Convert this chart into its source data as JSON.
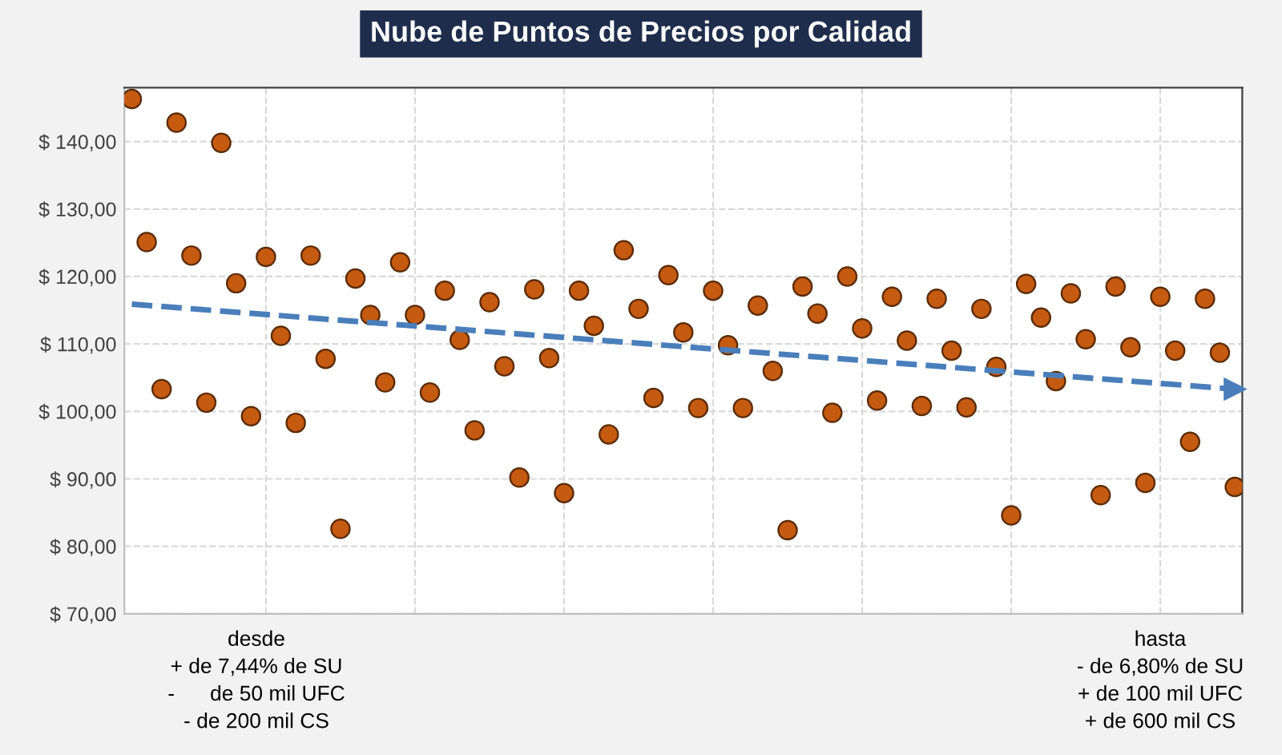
{
  "chart_data": {
    "type": "scatter",
    "title": "Nube de Puntos de Precios por Calidad",
    "categories": [
      null,
      null,
      null,
      null,
      null,
      null,
      null,
      null,
      null,
      null,
      null,
      null,
      null,
      null,
      null,
      null,
      null,
      null,
      null,
      null,
      null,
      null,
      null,
      null,
      null,
      null,
      null,
      null,
      null,
      null,
      null,
      null,
      null,
      null,
      null,
      null,
      null,
      null,
      null,
      null,
      null,
      null,
      null,
      null,
      null,
      null,
      null,
      null,
      null,
      null,
      null,
      null,
      null,
      null,
      null,
      null,
      null,
      null,
      null,
      null,
      null,
      null,
      null,
      null,
      null,
      null,
      null,
      null,
      null,
      null,
      null,
      null,
      null,
      null,
      null
    ],
    "series": [
      {
        "color": "#c55a11",
        "marker": "circle",
        "values": [
          146.3,
          125.1,
          103.3,
          142.8,
          123.1,
          101.3,
          139.8,
          119.0,
          99.3,
          122.9,
          111.2,
          98.3,
          123.1,
          107.8,
          82.6,
          119.7,
          114.3,
          104.3,
          122.1,
          114.3,
          102.8,
          117.9,
          110.6,
          97.2,
          116.2,
          106.7,
          90.2,
          118.1,
          107.9,
          87.9,
          117.9,
          112.7,
          96.6,
          123.9,
          115.2,
          102.0,
          120.2,
          111.7,
          100.5,
          117.9,
          109.8,
          100.5,
          115.7,
          106.0,
          82.4,
          118.5,
          114.5,
          99.8,
          120.0,
          112.3,
          101.6,
          117.0,
          110.5,
          100.8,
          116.7,
          109.0,
          100.6,
          115.2,
          106.6,
          84.6,
          118.9,
          113.9,
          104.5,
          117.5,
          110.7,
          87.6,
          118.5,
          109.5,
          89.4,
          117.0,
          109.0,
          95.5,
          116.7,
          108.7,
          88.8
        ]
      },
      {
        "type": "line",
        "color": "#4a7ebb",
        "line_style": "dashed",
        "values": [
          115.9,
          null,
          null,
          null,
          null,
          null,
          null,
          null,
          null,
          null,
          null,
          null,
          null,
          null,
          null,
          null,
          null,
          null,
          null,
          null,
          null,
          null,
          null,
          null,
          null,
          null,
          null,
          null,
          null,
          null,
          null,
          null,
          null,
          null,
          null,
          null,
          null,
          null,
          null,
          null,
          null,
          null,
          null,
          null,
          null,
          null,
          null,
          null,
          null,
          null,
          null,
          null,
          null,
          null,
          null,
          null,
          null,
          null,
          null,
          null,
          null,
          null,
          null,
          null,
          null,
          null,
          null,
          null,
          null,
          null,
          null,
          null,
          null,
          null,
          103.3
        ]
      }
    ],
    "ylim": [
      70,
      148
    ],
    "yticks": [
      {
        "value": 70,
        "label": "$ 70,00"
      },
      {
        "value": 80,
        "label": "$ 80,00"
      },
      {
        "value": 90,
        "label": "$ 90,00"
      },
      {
        "value": 100,
        "label": "$ 100,00"
      },
      {
        "value": 110,
        "label": "$ 110,00"
      },
      {
        "value": 120,
        "label": "$ 120,00"
      },
      {
        "value": 130,
        "label": "$ 130,00"
      },
      {
        "value": 140,
        "label": "$ 140,00"
      }
    ],
    "grid": true,
    "annotations": [
      "desde\n+ de 7,44% de SU\n-      de 50 mil UFC\n- de 200 mil CS",
      "hasta\n- de 6,80% de SU\n+ de 100 mil UFC\n+ de 600 mil CS"
    ]
  }
}
